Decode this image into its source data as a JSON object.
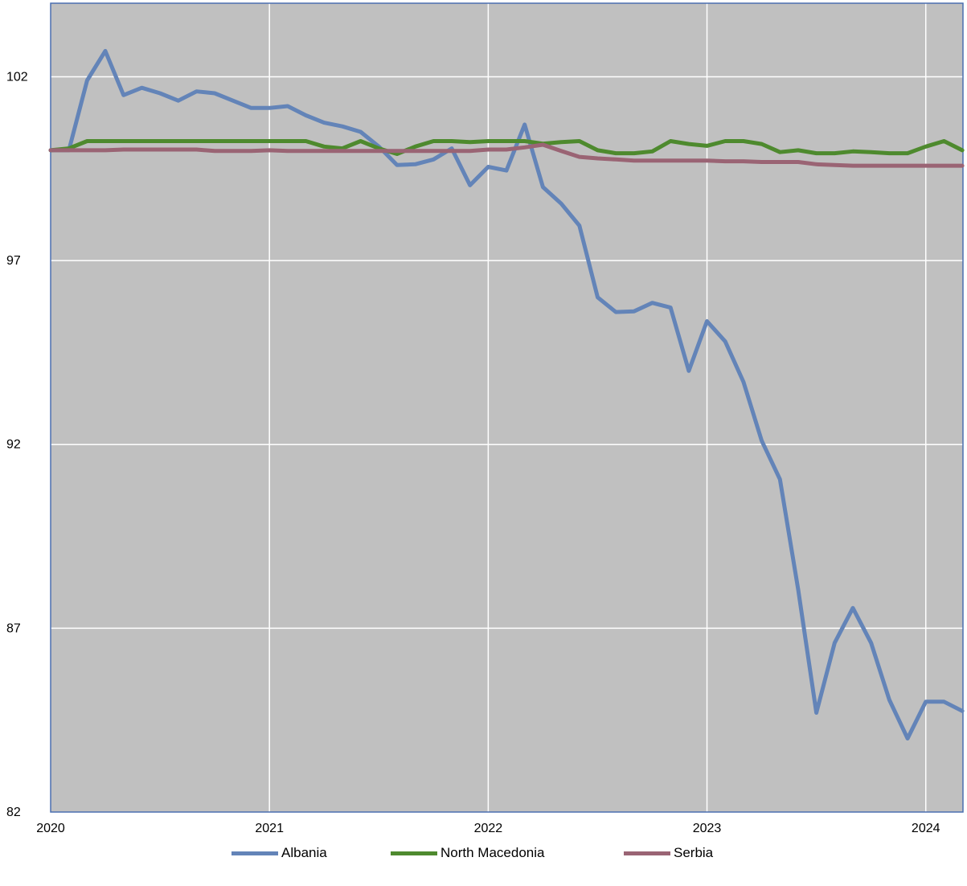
{
  "chart_data": {
    "type": "line",
    "title": "",
    "xlabel": "",
    "ylabel": "",
    "xlim": [
      2020.0,
      2024.17
    ],
    "ylim": [
      82,
      104
    ],
    "y_ticks": [
      82,
      87,
      92,
      97,
      102
    ],
    "x_ticks": [
      2020,
      2021,
      2022,
      2023,
      2024
    ],
    "grid": true,
    "legend_position": "bottom",
    "background": "#c0c0c0",
    "x": [
      2020.0,
      2020.0833,
      2020.1667,
      2020.25,
      2020.3333,
      2020.4167,
      2020.5,
      2020.5833,
      2020.6667,
      2020.75,
      2020.8333,
      2020.9167,
      2021.0,
      2021.0833,
      2021.1667,
      2021.25,
      2021.3333,
      2021.4167,
      2021.5,
      2021.5833,
      2021.6667,
      2021.75,
      2021.8333,
      2021.9167,
      2022.0,
      2022.0833,
      2022.1667,
      2022.25,
      2022.3333,
      2022.4167,
      2022.5,
      2022.5833,
      2022.6667,
      2022.75,
      2022.8333,
      2022.9167,
      2023.0,
      2023.0833,
      2023.1667,
      2023.25,
      2023.3333,
      2023.4167,
      2023.5,
      2023.5833,
      2023.6667,
      2023.75,
      2023.8333,
      2023.9167,
      2024.0,
      2024.0833,
      2024.1667
    ],
    "series": [
      {
        "name": "Albania",
        "color": "#6384b8",
        "values": [
          100.0,
          100.0,
          101.9,
          102.7,
          101.5,
          101.7,
          101.55,
          101.35,
          101.6,
          101.55,
          101.35,
          101.15,
          101.15,
          101.2,
          100.95,
          100.75,
          100.65,
          100.5,
          100.1,
          99.6,
          99.62,
          99.75,
          100.05,
          99.05,
          99.55,
          99.45,
          100.7,
          99.0,
          98.55,
          97.95,
          96.0,
          95.6,
          95.62,
          95.85,
          95.72,
          94.0,
          95.35,
          94.8,
          93.7,
          92.1,
          91.05,
          88.05,
          84.7,
          86.6,
          87.55,
          86.6,
          85.05,
          84.0,
          85.0,
          85.0,
          84.75
        ]
      },
      {
        "name": "North Macedonia",
        "color": "#4e8a2e",
        "values": [
          100.0,
          100.05,
          100.25,
          100.25,
          100.25,
          100.25,
          100.25,
          100.25,
          100.25,
          100.25,
          100.25,
          100.25,
          100.25,
          100.25,
          100.25,
          100.1,
          100.05,
          100.25,
          100.05,
          99.9,
          100.1,
          100.25,
          100.25,
          100.22,
          100.25,
          100.25,
          100.25,
          100.18,
          100.22,
          100.25,
          100.0,
          99.92,
          99.92,
          99.97,
          100.25,
          100.17,
          100.12,
          100.25,
          100.25,
          100.17,
          99.95,
          100.0,
          99.92,
          99.92,
          99.97,
          99.95,
          99.92,
          99.92,
          100.1,
          100.25,
          100.0
        ]
      },
      {
        "name": "Serbia",
        "color": "#9a6474",
        "values": [
          100.0,
          100.0,
          100.0,
          100.0,
          100.02,
          100.02,
          100.02,
          100.02,
          100.02,
          99.98,
          99.98,
          99.98,
          100.0,
          99.98,
          99.98,
          99.98,
          99.98,
          99.98,
          99.98,
          99.98,
          99.98,
          99.98,
          99.98,
          99.98,
          100.02,
          100.02,
          100.08,
          100.15,
          99.98,
          99.82,
          99.78,
          99.75,
          99.72,
          99.72,
          99.72,
          99.72,
          99.72,
          99.7,
          99.7,
          99.68,
          99.68,
          99.68,
          99.62,
          99.6,
          99.58,
          99.58,
          99.58,
          99.58,
          99.58,
          99.58,
          99.58
        ]
      }
    ]
  }
}
